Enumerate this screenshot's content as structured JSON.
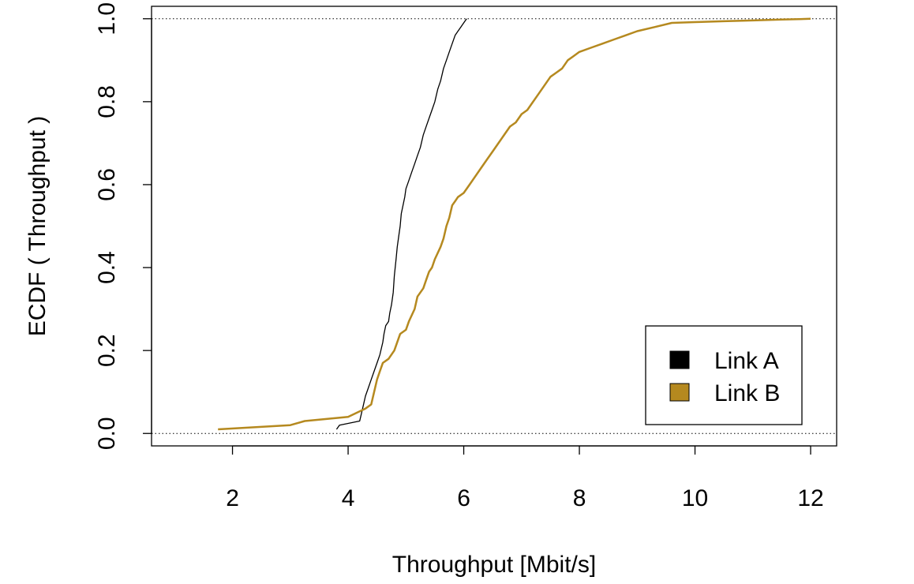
{
  "chart_data": {
    "type": "line",
    "title": "",
    "xlabel": "Throughput [Mbit/s]",
    "ylabel": "ECDF ( Throughput )",
    "xlim": [
      0.6,
      12.45
    ],
    "ylim": [
      -0.03,
      1.03
    ],
    "x_ticks": [
      2,
      4,
      6,
      8,
      10,
      12
    ],
    "x_tick_labels": [
      "2",
      "4",
      "6",
      "8",
      "10",
      "12"
    ],
    "y_ticks": [
      0.0,
      0.2,
      0.4,
      0.6,
      0.8,
      1.0
    ],
    "y_tick_labels": [
      "0.0",
      "0.2",
      "0.4",
      "0.6",
      "0.8",
      "1.0"
    ],
    "reference_lines": [
      0,
      1
    ],
    "grid": false,
    "legend_position": "bottom-right",
    "series": [
      {
        "name": "Link A",
        "color": "#000000",
        "x": [
          3.8,
          3.85,
          4.2,
          4.25,
          4.3,
          4.35,
          4.4,
          4.45,
          4.5,
          4.55,
          4.6,
          4.62,
          4.65,
          4.7,
          4.72,
          4.75,
          4.78,
          4.8,
          4.83,
          4.85,
          4.88,
          4.9,
          4.92,
          4.95,
          4.98,
          5.0,
          5.05,
          5.1,
          5.15,
          5.2,
          5.25,
          5.3,
          5.35,
          5.4,
          5.45,
          5.5,
          5.55,
          5.6,
          5.65,
          5.7,
          5.75,
          5.8,
          5.85,
          5.9,
          5.95,
          6.0,
          6.05
        ],
        "y": [
          0.01,
          0.02,
          0.03,
          0.06,
          0.09,
          0.11,
          0.13,
          0.15,
          0.17,
          0.19,
          0.22,
          0.24,
          0.26,
          0.27,
          0.29,
          0.31,
          0.34,
          0.38,
          0.42,
          0.45,
          0.48,
          0.5,
          0.53,
          0.55,
          0.57,
          0.59,
          0.61,
          0.63,
          0.65,
          0.67,
          0.69,
          0.72,
          0.74,
          0.76,
          0.78,
          0.8,
          0.83,
          0.85,
          0.88,
          0.9,
          0.92,
          0.94,
          0.96,
          0.97,
          0.98,
          0.99,
          1.0
        ]
      },
      {
        "name": "Link B",
        "color": "#b5891f",
        "x": [
          1.75,
          3.0,
          3.25,
          4.0,
          4.15,
          4.3,
          4.4,
          4.45,
          4.5,
          4.55,
          4.6,
          4.7,
          4.8,
          4.85,
          4.9,
          5.0,
          5.05,
          5.15,
          5.2,
          5.3,
          5.35,
          5.4,
          5.45,
          5.5,
          5.6,
          5.65,
          5.7,
          5.75,
          5.8,
          5.85,
          5.9,
          6.0,
          6.1,
          6.2,
          6.3,
          6.4,
          6.5,
          6.6,
          6.7,
          6.8,
          6.9,
          7.0,
          7.1,
          7.2,
          7.3,
          7.4,
          7.5,
          7.6,
          7.7,
          7.8,
          7.9,
          8.0,
          8.2,
          8.4,
          8.6,
          8.8,
          9.0,
          9.3,
          9.6,
          10.0,
          10.5,
          11.0,
          11.5,
          12.0
        ],
        "y": [
          0.01,
          0.02,
          0.03,
          0.04,
          0.05,
          0.06,
          0.07,
          0.1,
          0.13,
          0.15,
          0.17,
          0.18,
          0.2,
          0.22,
          0.24,
          0.25,
          0.27,
          0.3,
          0.33,
          0.35,
          0.37,
          0.39,
          0.4,
          0.42,
          0.45,
          0.47,
          0.5,
          0.52,
          0.55,
          0.56,
          0.57,
          0.58,
          0.6,
          0.62,
          0.64,
          0.66,
          0.68,
          0.7,
          0.72,
          0.74,
          0.75,
          0.77,
          0.78,
          0.8,
          0.82,
          0.84,
          0.86,
          0.87,
          0.88,
          0.9,
          0.91,
          0.92,
          0.93,
          0.94,
          0.95,
          0.96,
          0.97,
          0.98,
          0.99,
          0.992,
          0.994,
          0.996,
          0.998,
          1.0
        ]
      }
    ]
  }
}
